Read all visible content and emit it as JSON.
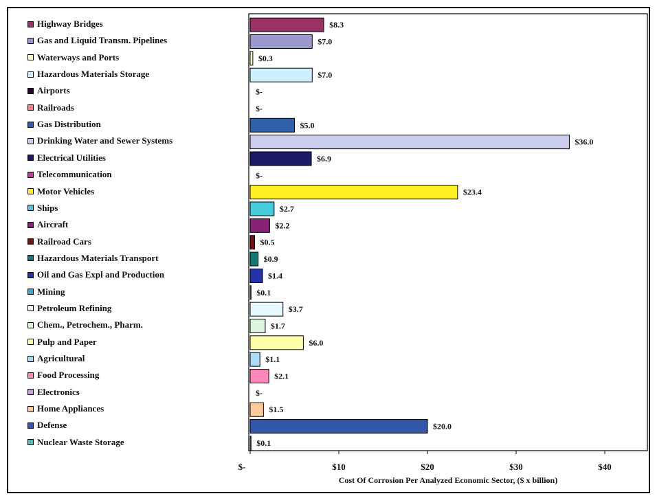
{
  "chart_data": {
    "type": "bar",
    "orientation": "horizontal",
    "xlabel": "Cost Of Corrosion Per Analyzed Economic Sector, ($ x billion)",
    "xlim": [
      0,
      45
    ],
    "xticks": [
      {
        "value": 0,
        "label": "$-"
      },
      {
        "value": 10,
        "label": "$10"
      },
      {
        "value": 20,
        "label": "$20"
      },
      {
        "value": 30,
        "label": "$30"
      },
      {
        "value": 40,
        "label": "$40"
      }
    ],
    "legend_position": "left",
    "grid": false,
    "categories": [
      {
        "name": "Highway Bridges",
        "value": 8.3,
        "label": "$8.3",
        "color": "#993366"
      },
      {
        "name": "Gas and Liquid Transm. Pipelines",
        "value": 7.0,
        "label": "$7.0",
        "color": "#9999CC"
      },
      {
        "name": "Waterways and Ports",
        "value": 0.3,
        "label": "$0.3",
        "color": "#FFFFCC"
      },
      {
        "name": "Hazardous Materials Storage",
        "value": 7.0,
        "label": "$7.0",
        "color": "#CCF0FF"
      },
      {
        "name": "Airports",
        "value": 0,
        "label": "$-",
        "color": "#330033"
      },
      {
        "name": "Railroads",
        "value": 0,
        "label": "$-",
        "color": "#FF8080"
      },
      {
        "name": "Gas Distribution",
        "value": 5.0,
        "label": "$5.0",
        "color": "#2E5FA8"
      },
      {
        "name": "Drinking Water and Sewer Systems",
        "value": 36.0,
        "label": "$36.0",
        "color": "#CCCCEE"
      },
      {
        "name": "Electrical Utilities",
        "value": 6.9,
        "label": "$6.9",
        "color": "#1A1A66"
      },
      {
        "name": "Telecommunication",
        "value": 0,
        "label": "$-",
        "color": "#CC3399"
      },
      {
        "name": "Motor Vehicles",
        "value": 23.4,
        "label": "$23.4",
        "color": "#FFEE22"
      },
      {
        "name": "Ships",
        "value": 2.7,
        "label": "$2.7",
        "color": "#44CCDD"
      },
      {
        "name": "Aircraft",
        "value": 2.2,
        "label": "$2.2",
        "color": "#882277"
      },
      {
        "name": "Railroad Cars",
        "value": 0.5,
        "label": "$0.5",
        "color": "#771111"
      },
      {
        "name": "Hazardous Materials Transport",
        "value": 0.9,
        "label": "$0.9",
        "color": "#117777"
      },
      {
        "name": "Oil and Gas Expl and Production",
        "value": 1.4,
        "label": "$1.4",
        "color": "#2233AA"
      },
      {
        "name": "Mining",
        "value": 0.1,
        "label": "$0.1",
        "color": "#33AACC"
      },
      {
        "name": "Petroleum Refining",
        "value": 3.7,
        "label": "$3.7",
        "color": "#E8F8FF"
      },
      {
        "name": "Chem., Petrochem., Pharm.",
        "value": 1.7,
        "label": "$1.7",
        "color": "#DDF5DD"
      },
      {
        "name": "Pulp and Paper",
        "value": 6.0,
        "label": "$6.0",
        "color": "#FFFFAA"
      },
      {
        "name": "Agricultural",
        "value": 1.1,
        "label": "$1.1",
        "color": "#AADDF5"
      },
      {
        "name": "Food Processing",
        "value": 2.1,
        "label": "$2.1",
        "color": "#FF88BB"
      },
      {
        "name": "Electronics",
        "value": 0,
        "label": "$-",
        "color": "#CC99DD"
      },
      {
        "name": "Home Appliances",
        "value": 1.5,
        "label": "$1.5",
        "color": "#FFCC99"
      },
      {
        "name": "Defense",
        "value": 20.0,
        "label": "$20.0",
        "color": "#3355AA"
      },
      {
        "name": "Nuclear Waste Storage",
        "value": 0.1,
        "label": "$0.1",
        "color": "#55BBBB"
      }
    ]
  }
}
